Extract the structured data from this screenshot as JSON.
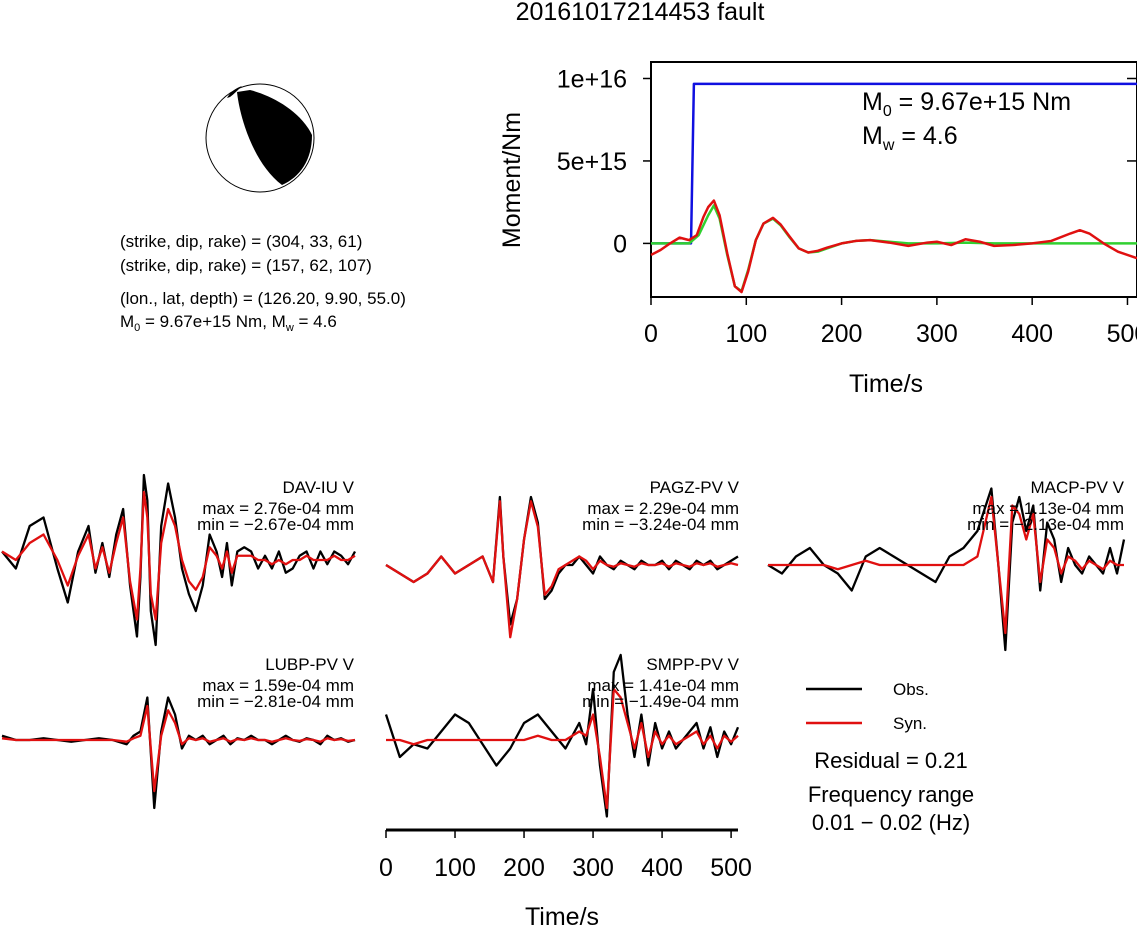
{
  "title": "20161017214453 fault",
  "mechanism": {
    "line1": "(strike, dip, rake) = (304, 33, 61)",
    "line2": "(strike, dip, rake) = (157, 62, 107)",
    "line3": "(lon., lat, depth) = (126.20, 9.90, 55.0)",
    "line4_m0": "9.67e+15 Nm",
    "line4_mw": "4.6"
  },
  "chart_data": [
    {
      "type": "line",
      "panel": "moment",
      "ylabel": "Moment/Nm",
      "xlabel": "Time/s",
      "xlim": [
        0,
        510
      ],
      "ylim": [
        -3250000000000000.0,
        1.1e+16
      ],
      "xticks": [
        0,
        100,
        200,
        300,
        400,
        500
      ],
      "yticks": [
        0,
        5000000000000000.0,
        1e+16
      ],
      "ytick_labels": [
        "0",
        "5e+15",
        "1e+16"
      ],
      "annotation_m0": "9.67e+15 Nm",
      "annotation_mw": "4.6",
      "series": [
        {
          "color": "#1010e0",
          "x": [
            0,
            42,
            45,
            510
          ],
          "y": [
            0,
            0,
            9670000000000000.0,
            9670000000000000.0
          ]
        },
        {
          "color": "#30d030",
          "x": [
            0,
            20,
            40,
            50,
            60,
            66,
            72,
            80,
            88,
            95,
            102,
            110,
            118,
            128,
            136,
            145,
            155,
            165,
            175,
            185,
            200,
            215,
            230,
            250,
            270,
            300,
            330,
            360,
            400,
            450,
            510
          ],
          "y": [
            0,
            0,
            0,
            500000000000000.0,
            1700000000000000.0,
            2300000000000000.0,
            1500000000000000.0,
            -700000000000000.0,
            -2600000000000000.0,
            -2900000000000000.0,
            -1600000000000000.0,
            200000000000000.0,
            1200000000000000.0,
            1500000000000000.0,
            1100000000000000.0,
            400000000000000.0,
            -300000000000000.0,
            -550000000000000.0,
            -500000000000000.0,
            -300000000000000.0,
            0.0,
            150000000000000.0,
            200000000000000.0,
            100000000000000.0,
            0.0,
            0.0,
            50000000000000.0,
            0.0,
            0.0,
            0.0,
            0.0
          ]
        },
        {
          "color": "#e01010",
          "x": [
            0,
            10,
            20,
            30,
            40,
            48,
            55,
            60,
            66,
            72,
            80,
            88,
            95,
            102,
            110,
            118,
            128,
            136,
            145,
            155,
            165,
            175,
            185,
            200,
            215,
            230,
            250,
            270,
            290,
            300,
            315,
            330,
            345,
            360,
            380,
            400,
            420,
            440,
            450,
            460,
            475,
            490,
            510
          ],
          "y": [
            -700000000000000.0,
            -400000000000000.0,
            0,
            350000000000000.0,
            200000000000000.0,
            500000000000000.0,
            1600000000000000.0,
            2200000000000000.0,
            2600000000000000.0,
            1700000000000000.0,
            -600000000000000.0,
            -2600000000000000.0,
            -2950000000000000.0,
            -1700000000000000.0,
            200000000000000.0,
            1200000000000000.0,
            1550000000000000.0,
            1150000000000000.0,
            450000000000000.0,
            -300000000000000.0,
            -550000000000000.0,
            -450000000000000.0,
            -250000000000000.0,
            0.0,
            150000000000000.0,
            200000000000000.0,
            50000000000000.0,
            -150000000000000.0,
            50000000000000.0,
            100000000000000.0,
            -100000000000000.0,
            250000000000000.0,
            100000000000000.0,
            -150000000000000.0,
            -100000000000000.0,
            0.0,
            150000000000000.0,
            600000000000000.0,
            800000000000000.0,
            600000000000000.0,
            0.0,
            -500000000000000.0,
            -900000000000000.0
          ]
        }
      ]
    },
    {
      "type": "line",
      "panel": "waveforms",
      "xlabel": "Time/s",
      "xlim": [
        0,
        510
      ],
      "xticks": [
        0,
        100,
        200,
        300,
        400,
        500
      ],
      "legend": {
        "obs": "Obs.",
        "syn": "Syn."
      },
      "residual": "Residual = 0.21",
      "frequency_title": "Frequency range",
      "frequency_range": "0.01 − 0.02 (Hz)",
      "stations": [
        {
          "name": "DAV-IU V",
          "max": "max = 2.76e-04 mm",
          "min": "min = −2.67e-04 mm",
          "obs": [
            0,
            20,
            40,
            60,
            80,
            95,
            110,
            125,
            135,
            145,
            155,
            165,
            175,
            185,
            195,
            200,
            205,
            210,
            215,
            222,
            230,
            240,
            250,
            260,
            270,
            280,
            290,
            300,
            310,
            318,
            325,
            332,
            340,
            350,
            360,
            370,
            380,
            390,
            400,
            410,
            420,
            430,
            440,
            450,
            460,
            470,
            480,
            490,
            500,
            510
          ],
          "obs_y": [
            0.1,
            -0.1,
            0.4,
            0.5,
            -0.1,
            -0.5,
            0.1,
            0.4,
            -0.15,
            0.2,
            -0.2,
            0.3,
            0.6,
            -0.3,
            -0.9,
            -0.2,
            1.0,
            0.7,
            -0.6,
            -1.0,
            0.4,
            0.9,
            0.5,
            -0.1,
            -0.4,
            -0.6,
            -0.3,
            0.3,
            0.1,
            -0.2,
            0.2,
            -0.3,
            0.1,
            0.15,
            0.1,
            -0.1,
            0.05,
            -0.1,
            0.1,
            -0.15,
            -0.1,
            0.05,
            0.1,
            -0.1,
            0.1,
            -0.05,
            0.1,
            0.05,
            -0.05,
            0.1
          ],
          "syn_y": [
            0.1,
            0.0,
            0.2,
            0.3,
            0.0,
            -0.3,
            0.05,
            0.3,
            -0.1,
            0.15,
            -0.15,
            0.2,
            0.5,
            -0.25,
            -0.7,
            -0.1,
            0.8,
            0.5,
            -0.4,
            -0.7,
            0.2,
            0.6,
            0.4,
            0.0,
            -0.25,
            -0.35,
            -0.2,
            0.15,
            0.05,
            -0.1,
            0.1,
            -0.15,
            0.05,
            0.05,
            0.05,
            0.0,
            0.0,
            -0.05,
            0.0,
            -0.05,
            0.0,
            0.0,
            0.05,
            0.0,
            0.0,
            0.0,
            0.05,
            0.0,
            0.0,
            0.05
          ]
        },
        {
          "name": "PAGZ-PV V",
          "max": "max = 2.29e-04 mm",
          "min": "min = −3.24e-04 mm",
          "obs": [
            0,
            20,
            40,
            60,
            80,
            100,
            120,
            140,
            155,
            165,
            170,
            180,
            190,
            200,
            210,
            220,
            230,
            240,
            250,
            260,
            270,
            280,
            290,
            300,
            310,
            320,
            330,
            340,
            350,
            360,
            370,
            380,
            390,
            400,
            410,
            420,
            430,
            440,
            450,
            460,
            470,
            480,
            490,
            500,
            510
          ],
          "obs_y": [
            0.0,
            -0.1,
            -0.2,
            -0.1,
            0.1,
            -0.1,
            0.0,
            0.1,
            -0.2,
            0.8,
            0.1,
            -0.7,
            -0.4,
            0.3,
            0.8,
            0.5,
            -0.4,
            -0.3,
            -0.1,
            0.0,
            0.0,
            0.1,
            0.0,
            -0.1,
            0.1,
            0.0,
            -0.05,
            0.05,
            0.0,
            -0.05,
            0.05,
            0.0,
            0.0,
            0.05,
            -0.05,
            0.05,
            0.0,
            -0.05,
            0.05,
            0.0,
            0.05,
            -0.05,
            0.0,
            0.05,
            0.1
          ],
          "syn_y": [
            0.0,
            -0.1,
            -0.2,
            -0.1,
            0.1,
            -0.1,
            0.0,
            0.1,
            -0.2,
            0.75,
            0.1,
            -0.85,
            -0.4,
            0.3,
            0.75,
            0.45,
            -0.35,
            -0.25,
            -0.05,
            0.0,
            0.05,
            0.1,
            0.05,
            -0.05,
            0.05,
            0.0,
            -0.02,
            0.02,
            0.0,
            -0.02,
            0.02,
            0.0,
            0.0,
            0.02,
            -0.02,
            0.02,
            0.0,
            -0.02,
            0.02,
            0.0,
            0.02,
            -0.02,
            0.0,
            0.02,
            0.0
          ]
        },
        {
          "name": "MACP-PV V",
          "max": "max = 1.13e-04 mm",
          "min": "min = −2.13e-04 mm",
          "obs": [
            0,
            20,
            40,
            60,
            80,
            100,
            120,
            140,
            160,
            180,
            200,
            220,
            240,
            260,
            280,
            300,
            320,
            330,
            340,
            350,
            360,
            370,
            380,
            390,
            400,
            410,
            420,
            430,
            440,
            450,
            460,
            470,
            480,
            490,
            500,
            510
          ],
          "obs_y": [
            0.0,
            -0.1,
            0.1,
            0.2,
            0.0,
            -0.1,
            -0.3,
            0.1,
            0.2,
            0.1,
            0.0,
            -0.1,
            -0.2,
            0.1,
            0.2,
            0.4,
            0.9,
            0.0,
            -1.0,
            0.5,
            0.8,
            0.4,
            0.7,
            -0.3,
            0.5,
            0.3,
            -0.2,
            0.2,
            0.0,
            -0.1,
            0.1,
            0.0,
            -0.1,
            0.2,
            -0.1,
            0.3
          ],
          "syn_y": [
            0.0,
            0.0,
            0.0,
            0.0,
            0.0,
            -0.05,
            0.0,
            0.05,
            0.0,
            0.0,
            0.0,
            0.0,
            0.0,
            0.0,
            0.0,
            0.1,
            0.8,
            0.0,
            -0.8,
            0.7,
            0.6,
            0.3,
            0.6,
            -0.2,
            0.3,
            0.2,
            -0.1,
            0.1,
            0.05,
            -0.05,
            0.05,
            0.0,
            -0.05,
            0.05,
            0.0,
            0.0
          ]
        },
        {
          "name": "LUBP-PV V",
          "max": "max = 1.59e-04 mm",
          "min": "min = −2.81e-04 mm",
          "obs": [
            0,
            20,
            40,
            60,
            80,
            100,
            120,
            140,
            160,
            180,
            190,
            200,
            210,
            220,
            230,
            240,
            250,
            260,
            270,
            280,
            290,
            300,
            310,
            320,
            330,
            340,
            350,
            360,
            370,
            380,
            390,
            400,
            410,
            420,
            430,
            440,
            450,
            460,
            470,
            480,
            490,
            500,
            510
          ],
          "obs_y": [
            0.05,
            0.0,
            0.0,
            0.02,
            0.0,
            -0.02,
            0.0,
            0.02,
            0.0,
            -0.05,
            0.05,
            0.1,
            0.5,
            -0.8,
            0.1,
            0.5,
            0.3,
            -0.1,
            0.05,
            0.0,
            0.05,
            -0.05,
            0.0,
            0.05,
            -0.05,
            0.02,
            0.0,
            0.05,
            0.0,
            0.0,
            -0.05,
            0.0,
            0.05,
            0.0,
            -0.02,
            0.02,
            0.0,
            -0.05,
            0.05,
            0.0,
            0.02,
            -0.02,
            0.0
          ],
          "syn_y": [
            0.02,
            0.0,
            0.0,
            0.0,
            0.0,
            0.0,
            0.0,
            0.0,
            0.0,
            -0.02,
            0.02,
            0.05,
            0.4,
            -0.6,
            0.05,
            0.35,
            0.2,
            -0.05,
            0.02,
            0.0,
            0.02,
            -0.02,
            0.0,
            0.02,
            -0.02,
            0.01,
            0.0,
            0.02,
            0.0,
            0.0,
            -0.02,
            0.0,
            0.02,
            0.0,
            -0.01,
            0.01,
            0.0,
            -0.02,
            0.02,
            0.0,
            0.01,
            -0.01,
            0.0
          ]
        },
        {
          "name": "SMPP-PV V",
          "max": "max = 1.41e-04 mm",
          "min": "min = −1.49e-04 mm",
          "obs": [
            0,
            20,
            40,
            60,
            80,
            100,
            120,
            140,
            160,
            180,
            200,
            220,
            240,
            260,
            280,
            290,
            300,
            310,
            320,
            330,
            340,
            350,
            360,
            370,
            380,
            390,
            400,
            410,
            420,
            430,
            440,
            450,
            460,
            470,
            480,
            490,
            500,
            510
          ],
          "obs_y": [
            0.3,
            -0.2,
            -0.05,
            -0.1,
            0.1,
            0.3,
            0.2,
            -0.05,
            -0.3,
            -0.1,
            0.2,
            0.3,
            0.1,
            -0.1,
            0.2,
            -0.05,
            0.6,
            -0.3,
            -0.9,
            0.8,
            1.0,
            0.3,
            -0.2,
            0.3,
            -0.3,
            0.2,
            -0.1,
            0.1,
            -0.1,
            0.0,
            0.1,
            0.2,
            -0.1,
            0.15,
            -0.2,
            0.1,
            -0.05,
            0.15
          ],
          "syn_y": [
            0.0,
            0.0,
            -0.05,
            0.0,
            0.0,
            0.0,
            0.0,
            0.0,
            0.0,
            0.0,
            0.0,
            0.05,
            0.0,
            0.0,
            0.1,
            0.05,
            0.3,
            -0.2,
            -0.8,
            0.6,
            0.5,
            0.2,
            -0.1,
            0.2,
            -0.2,
            0.1,
            -0.05,
            0.05,
            -0.05,
            0.0,
            0.05,
            0.1,
            -0.05,
            0.05,
            -0.1,
            0.05,
            -0.02,
            0.05
          ]
        }
      ]
    }
  ]
}
